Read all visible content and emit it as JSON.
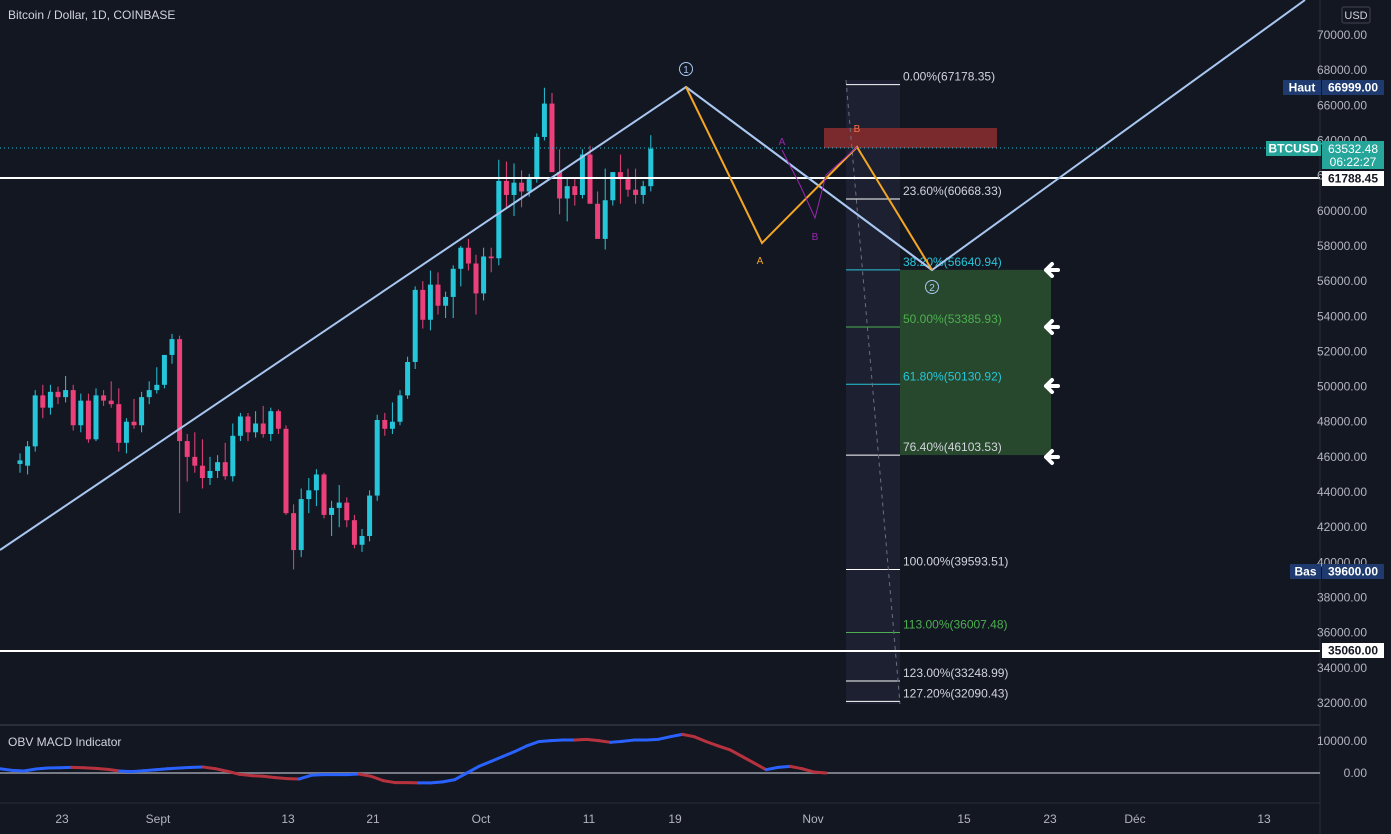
{
  "header": {
    "title": "Bitcoin / Dollar, 1D, COINBASE"
  },
  "indicator": {
    "title": "OBV MACD Indicator",
    "ticks": [
      "10000.00",
      "0.00"
    ]
  },
  "price_axis": {
    "currency": "USD",
    "ticks": [
      "70000.00",
      "68000.00",
      "66000.00",
      "64000.00",
      "62000.00",
      "60000.00",
      "58000.00",
      "56000.00",
      "54000.00",
      "52000.00",
      "50000.00",
      "48000.00",
      "46000.00",
      "44000.00",
      "42000.00",
      "40000.00",
      "38000.00",
      "36000.00",
      "34000.00",
      "32000.00"
    ],
    "high_label": "Haut",
    "high_value": "66999.00",
    "low_label": "Bas",
    "low_value": "39600.00",
    "symbol_label": "BTCUSD",
    "last_price": "63532.48",
    "countdown": "06:22:27",
    "level_1": "61788.45",
    "level_2": "35060.00"
  },
  "time_axis": {
    "ticks": [
      "23",
      "Sept",
      "13",
      "21",
      "Oct",
      "11",
      "19",
      "Nov",
      "15",
      "23",
      "Déc",
      "13"
    ]
  },
  "fib_levels": [
    {
      "label": "0.00%(67178.35)",
      "price": 67178.35
    },
    {
      "label": "23.60%(60668.33)",
      "price": 60668.33
    },
    {
      "label": "38.20%(56640.94)",
      "price": 56640.94
    },
    {
      "label": "50.00%(53385.93)",
      "price": 53385.93
    },
    {
      "label": "61.80%(50130.92)",
      "price": 50130.92
    },
    {
      "label": "76.40%(46103.53)",
      "price": 46103.53
    },
    {
      "label": "100.00%(39593.51)",
      "price": 39593.51
    },
    {
      "label": "113.00%(36007.48)",
      "price": 36007.48
    },
    {
      "label": "123.00%(33248.99)",
      "price": 33248.99
    },
    {
      "label": "127.20%(32090.43)",
      "price": 32090.43
    }
  ],
  "annotations": {
    "wave_1": "1",
    "wave_2": "2",
    "pattern_a": "A",
    "pattern_b": "B",
    "harmonic_a": "A",
    "harmonic_b": "B"
  },
  "colors": {
    "up": "#26c6da",
    "down": "#ec407a",
    "wave": "#a9c6f0",
    "pattern": "#f5a623",
    "zone": "#27482d",
    "resistance": "#7a2a2d",
    "obv_up": "#2962ff",
    "obv_down": "#b7323f"
  },
  "chart_data": {
    "type": "candlestick",
    "title": "Bitcoin / Dollar, 1D, COINBASE",
    "x_ticks": [
      "23",
      "Sept",
      "13",
      "21",
      "Oct",
      "11",
      "19",
      "Nov",
      "15",
      "23",
      "Déc",
      "13"
    ],
    "ylim": [
      31000,
      71000
    ],
    "candles": [
      {
        "o": 45600,
        "h": 46200,
        "l": 45100,
        "c": 45800
      },
      {
        "o": 45500,
        "h": 46900,
        "l": 45000,
        "c": 46600
      },
      {
        "o": 46600,
        "h": 49800,
        "l": 46300,
        "c": 49500
      },
      {
        "o": 49500,
        "h": 50100,
        "l": 48200,
        "c": 48800
      },
      {
        "o": 48800,
        "h": 50100,
        "l": 48400,
        "c": 49700
      },
      {
        "o": 49700,
        "h": 50000,
        "l": 49000,
        "c": 49400
      },
      {
        "o": 49400,
        "h": 50600,
        "l": 49100,
        "c": 49800
      },
      {
        "o": 49800,
        "h": 50100,
        "l": 47500,
        "c": 47800
      },
      {
        "o": 47800,
        "h": 49600,
        "l": 47400,
        "c": 49200
      },
      {
        "o": 49200,
        "h": 49600,
        "l": 46800,
        "c": 47000
      },
      {
        "o": 47000,
        "h": 49900,
        "l": 46900,
        "c": 49500
      },
      {
        "o": 49500,
        "h": 49800,
        "l": 48900,
        "c": 49200
      },
      {
        "o": 49200,
        "h": 50300,
        "l": 48800,
        "c": 49000
      },
      {
        "o": 49000,
        "h": 49900,
        "l": 46300,
        "c": 46800
      },
      {
        "o": 46800,
        "h": 48200,
        "l": 46200,
        "c": 48000
      },
      {
        "o": 48000,
        "h": 49300,
        "l": 47600,
        "c": 47800
      },
      {
        "o": 47800,
        "h": 49700,
        "l": 47400,
        "c": 49400
      },
      {
        "o": 49400,
        "h": 50300,
        "l": 49000,
        "c": 49800
      },
      {
        "o": 49800,
        "h": 51100,
        "l": 49600,
        "c": 50100
      },
      {
        "o": 50100,
        "h": 51700,
        "l": 49900,
        "c": 51800
      },
      {
        "o": 51800,
        "h": 53000,
        "l": 51300,
        "c": 52700
      },
      {
        "o": 52700,
        "h": 52900,
        "l": 42800,
        "c": 46900
      },
      {
        "o": 46900,
        "h": 47300,
        "l": 44600,
        "c": 46000
      },
      {
        "o": 46000,
        "h": 47400,
        "l": 45100,
        "c": 45500
      },
      {
        "o": 45500,
        "h": 47000,
        "l": 44200,
        "c": 44800
      },
      {
        "o": 44800,
        "h": 46000,
        "l": 44400,
        "c": 45200
      },
      {
        "o": 45200,
        "h": 46100,
        "l": 44800,
        "c": 45700
      },
      {
        "o": 45700,
        "h": 46800,
        "l": 44700,
        "c": 44900
      },
      {
        "o": 44900,
        "h": 47900,
        "l": 44600,
        "c": 47200
      },
      {
        "o": 47200,
        "h": 48500,
        "l": 46900,
        "c": 48300
      },
      {
        "o": 48300,
        "h": 48500,
        "l": 46900,
        "c": 47400
      },
      {
        "o": 47400,
        "h": 48600,
        "l": 47100,
        "c": 47900
      },
      {
        "o": 47900,
        "h": 48900,
        "l": 47100,
        "c": 47300
      },
      {
        "o": 47300,
        "h": 48800,
        "l": 46900,
        "c": 48600
      },
      {
        "o": 48600,
        "h": 48700,
        "l": 47300,
        "c": 47600
      },
      {
        "o": 47600,
        "h": 47800,
        "l": 42700,
        "c": 42800
      },
      {
        "o": 42800,
        "h": 43300,
        "l": 39600,
        "c": 40700
      },
      {
        "o": 40700,
        "h": 44200,
        "l": 40300,
        "c": 43600
      },
      {
        "o": 43600,
        "h": 44800,
        "l": 42800,
        "c": 44100
      },
      {
        "o": 44100,
        "h": 45300,
        "l": 43200,
        "c": 45000
      },
      {
        "o": 45000,
        "h": 45100,
        "l": 42500,
        "c": 42700
      },
      {
        "o": 42700,
        "h": 43500,
        "l": 41500,
        "c": 43100
      },
      {
        "o": 43100,
        "h": 44400,
        "l": 42000,
        "c": 43400
      },
      {
        "o": 43400,
        "h": 43700,
        "l": 42000,
        "c": 42400
      },
      {
        "o": 42400,
        "h": 42700,
        "l": 40800,
        "c": 41000
      },
      {
        "o": 41000,
        "h": 41900,
        "l": 40600,
        "c": 41500
      },
      {
        "o": 41500,
        "h": 44100,
        "l": 41200,
        "c": 43800
      },
      {
        "o": 43800,
        "h": 48400,
        "l": 43500,
        "c": 48100
      },
      {
        "o": 48100,
        "h": 48500,
        "l": 47200,
        "c": 47600
      },
      {
        "o": 47600,
        "h": 49100,
        "l": 47300,
        "c": 48000
      },
      {
        "o": 48000,
        "h": 49800,
        "l": 47800,
        "c": 49500
      },
      {
        "o": 49500,
        "h": 51700,
        "l": 49300,
        "c": 51400
      },
      {
        "o": 51400,
        "h": 55700,
        "l": 51000,
        "c": 55500
      },
      {
        "o": 55500,
        "h": 56000,
        "l": 53300,
        "c": 53800
      },
      {
        "o": 53800,
        "h": 56600,
        "l": 53200,
        "c": 55800
      },
      {
        "o": 55800,
        "h": 56500,
        "l": 54100,
        "c": 54600
      },
      {
        "o": 54600,
        "h": 55400,
        "l": 53900,
        "c": 55100
      },
      {
        "o": 55100,
        "h": 56900,
        "l": 53900,
        "c": 56700
      },
      {
        "o": 56700,
        "h": 58000,
        "l": 55700,
        "c": 57900
      },
      {
        "o": 57900,
        "h": 58400,
        "l": 56600,
        "c": 57000
      },
      {
        "o": 57000,
        "h": 57500,
        "l": 54100,
        "c": 55300
      },
      {
        "o": 55300,
        "h": 57900,
        "l": 54900,
        "c": 57400
      },
      {
        "o": 57400,
        "h": 57900,
        "l": 56500,
        "c": 57300
      },
      {
        "o": 57300,
        "h": 62900,
        "l": 56900,
        "c": 61700
      },
      {
        "o": 61700,
        "h": 62800,
        "l": 60100,
        "c": 60900
      },
      {
        "o": 60900,
        "h": 62700,
        "l": 59700,
        "c": 61600
      },
      {
        "o": 61600,
        "h": 62300,
        "l": 60200,
        "c": 61100
      },
      {
        "o": 61100,
        "h": 62100,
        "l": 60800,
        "c": 61800
      },
      {
        "o": 61800,
        "h": 64400,
        "l": 61600,
        "c": 64200
      },
      {
        "o": 64200,
        "h": 67000,
        "l": 64000,
        "c": 66100
      },
      {
        "o": 66100,
        "h": 66700,
        "l": 62500,
        "c": 62200
      },
      {
        "o": 62200,
        "h": 63500,
        "l": 59800,
        "c": 60700
      },
      {
        "o": 60700,
        "h": 61900,
        "l": 59400,
        "c": 61400
      },
      {
        "o": 61400,
        "h": 61900,
        "l": 60300,
        "c": 60900
      },
      {
        "o": 60900,
        "h": 63500,
        "l": 60700,
        "c": 63200
      },
      {
        "o": 63200,
        "h": 63700,
        "l": 60600,
        "c": 60400
      },
      {
        "o": 60400,
        "h": 61100,
        "l": 58600,
        "c": 58400
      },
      {
        "o": 58400,
        "h": 62400,
        "l": 57800,
        "c": 60600
      },
      {
        "o": 60600,
        "h": 62200,
        "l": 60300,
        "c": 62200
      },
      {
        "o": 62200,
        "h": 63200,
        "l": 60400,
        "c": 61800
      },
      {
        "o": 61800,
        "h": 62400,
        "l": 60800,
        "c": 61200
      },
      {
        "o": 61200,
        "h": 62400,
        "l": 60400,
        "c": 60900
      },
      {
        "o": 60900,
        "h": 61700,
        "l": 60400,
        "c": 61400
      },
      {
        "o": 61400,
        "h": 64300,
        "l": 61100,
        "c": 63532
      }
    ],
    "obv_macd": [
      {
        "v": 1300,
        "s": "down"
      },
      {
        "v": 800,
        "s": "up"
      },
      {
        "v": 600,
        "s": "up"
      },
      {
        "v": 1200,
        "s": "up"
      },
      {
        "v": 1500,
        "s": "up"
      },
      {
        "v": 1600,
        "s": "up"
      },
      {
        "v": 1700,
        "s": "up"
      },
      {
        "v": 1600,
        "s": "down"
      },
      {
        "v": 1400,
        "s": "down"
      },
      {
        "v": 1100,
        "s": "down"
      },
      {
        "v": 600,
        "s": "down"
      },
      {
        "v": 400,
        "s": "up"
      },
      {
        "v": 700,
        "s": "up"
      },
      {
        "v": 1000,
        "s": "up"
      },
      {
        "v": 1300,
        "s": "up"
      },
      {
        "v": 1500,
        "s": "up"
      },
      {
        "v": 1700,
        "s": "up"
      },
      {
        "v": 1800,
        "s": "up"
      },
      {
        "v": 1300,
        "s": "down"
      },
      {
        "v": 500,
        "s": "down"
      },
      {
        "v": -400,
        "s": "down"
      },
      {
        "v": -800,
        "s": "down"
      },
      {
        "v": -1000,
        "s": "down"
      },
      {
        "v": -1400,
        "s": "down"
      },
      {
        "v": -1700,
        "s": "down"
      },
      {
        "v": -1800,
        "s": "down"
      },
      {
        "v": -700,
        "s": "up"
      },
      {
        "v": -500,
        "s": "up"
      },
      {
        "v": -500,
        "s": "up"
      },
      {
        "v": -500,
        "s": "up"
      },
      {
        "v": -300,
        "s": "up"
      },
      {
        "v": -1000,
        "s": "down"
      },
      {
        "v": -2300,
        "s": "down"
      },
      {
        "v": -2900,
        "s": "down"
      },
      {
        "v": -2900,
        "s": "down"
      },
      {
        "v": -3000,
        "s": "down"
      },
      {
        "v": -3000,
        "s": "up"
      },
      {
        "v": -2700,
        "s": "up"
      },
      {
        "v": -2000,
        "s": "up"
      },
      {
        "v": 0,
        "s": "up"
      },
      {
        "v": 2000,
        "s": "up"
      },
      {
        "v": 3500,
        "s": "up"
      },
      {
        "v": 5000,
        "s": "up"
      },
      {
        "v": 6500,
        "s": "up"
      },
      {
        "v": 8200,
        "s": "up"
      },
      {
        "v": 9500,
        "s": "up"
      },
      {
        "v": 9800,
        "s": "up"
      },
      {
        "v": 10000,
        "s": "up"
      },
      {
        "v": 10000,
        "s": "up"
      },
      {
        "v": 10200,
        "s": "down"
      },
      {
        "v": 9800,
        "s": "down"
      },
      {
        "v": 9300,
        "s": "down"
      },
      {
        "v": 9600,
        "s": "up"
      },
      {
        "v": 10000,
        "s": "up"
      },
      {
        "v": 10000,
        "s": "up"
      },
      {
        "v": 10200,
        "s": "up"
      },
      {
        "v": 11000,
        "s": "up"
      },
      {
        "v": 11700,
        "s": "up"
      },
      {
        "v": 11000,
        "s": "down"
      },
      {
        "v": 9500,
        "s": "down"
      },
      {
        "v": 8200,
        "s": "down"
      },
      {
        "v": 7000,
        "s": "down"
      },
      {
        "v": 5000,
        "s": "down"
      },
      {
        "v": 3000,
        "s": "down"
      },
      {
        "v": 1000,
        "s": "down"
      },
      {
        "v": 1700,
        "s": "up"
      },
      {
        "v": 2000,
        "s": "up"
      },
      {
        "v": 1300,
        "s": "down"
      },
      {
        "v": 300,
        "s": "down"
      },
      {
        "v": 0,
        "s": "down"
      }
    ]
  }
}
